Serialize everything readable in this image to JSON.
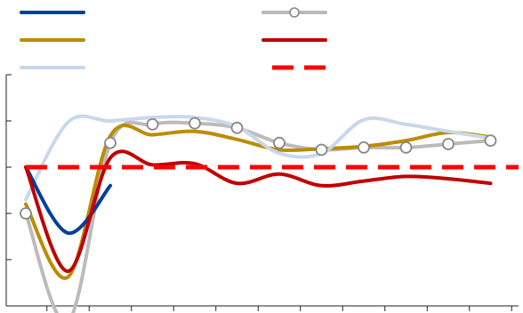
{
  "chart_data": {
    "type": "line",
    "title": "",
    "xlabel": "",
    "ylabel": "",
    "x": [
      0,
      1,
      2,
      3,
      4,
      5,
      6,
      7,
      8,
      9,
      10,
      11
    ],
    "xlim": [
      0,
      11.7
    ],
    "ylim": [
      -2,
      8
    ],
    "grid": false,
    "legend_position": "top",
    "series": [
      {
        "color": "#003f9a",
        "style": "solid",
        "marker": "none",
        "values": [
          4.0,
          1.15,
          3.2,
          null,
          null,
          null,
          null,
          null,
          null,
          null,
          null,
          null
        ]
      },
      {
        "color": "#bb8c00",
        "style": "solid",
        "marker": "none",
        "values": [
          2.4,
          -0.75,
          5.35,
          5.4,
          5.55,
          5.2,
          4.75,
          4.8,
          4.9,
          5.15,
          5.5,
          5.3
        ]
      },
      {
        "color": "#c8d8ec",
        "style": "solid",
        "marker": "none",
        "values": [
          2.6,
          5.95,
          6.0,
          6.15,
          6.15,
          5.75,
          4.6,
          4.6,
          6.05,
          5.85,
          5.55,
          5.25
        ]
      },
      {
        "color": "#bbbbbb",
        "style": "solid",
        "marker": "circle",
        "values": [
          2.0,
          -2.7,
          5.05,
          5.85,
          5.9,
          5.7,
          5.05,
          4.75,
          4.85,
          4.85,
          5.0,
          5.15
        ]
      },
      {
        "color": "#c00000",
        "style": "solid",
        "marker": "none",
        "values": [
          4.0,
          -0.5,
          4.4,
          4.1,
          4.15,
          3.3,
          3.7,
          3.2,
          3.4,
          3.6,
          3.5,
          3.3
        ]
      },
      {
        "color": "#ff0000",
        "style": "dashed",
        "marker": "none",
        "values": [
          4.0,
          4.0,
          4.0,
          4.0,
          4.0,
          4.0,
          4.0,
          4.0,
          4.0,
          4.0,
          4.0,
          4.0
        ]
      }
    ]
  }
}
